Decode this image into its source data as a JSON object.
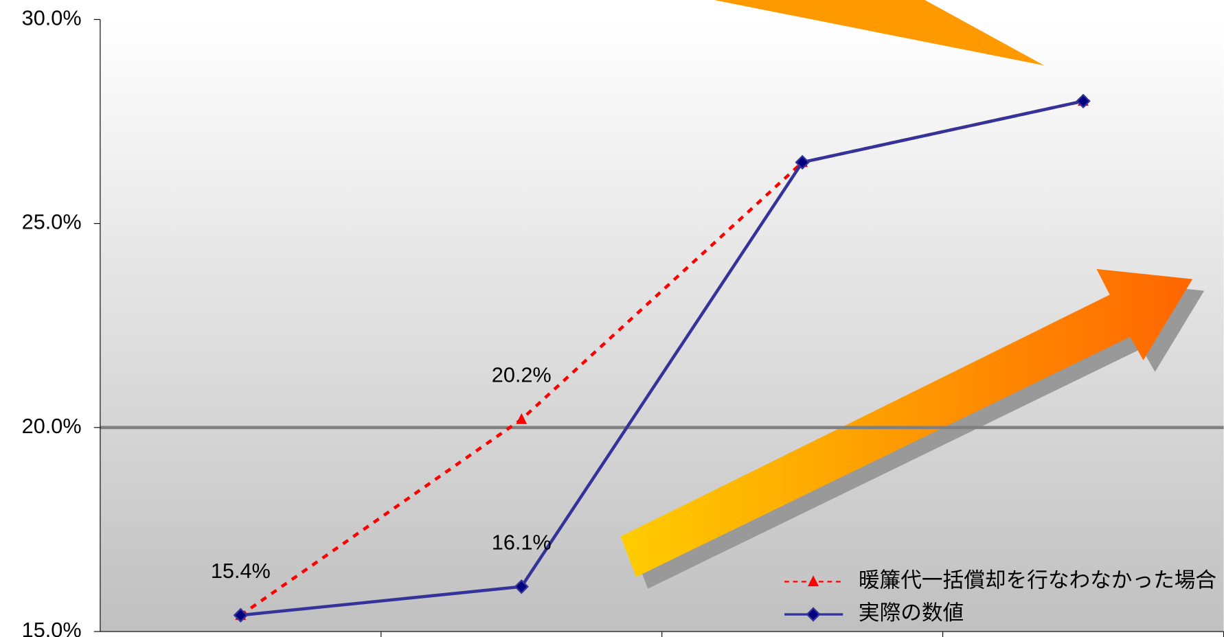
{
  "chart_data": {
    "type": "line",
    "categories": [
      null,
      null,
      null,
      null
    ],
    "series": [
      {
        "name": "暖簾代一括償却を行なわなかった場合",
        "color": "#ff0000",
        "dash": true,
        "marker": "triangle",
        "values": [
          15.4,
          20.2,
          26.5,
          28.0
        ],
        "value_labels": [
          "15.4%",
          "20.2%",
          null,
          null
        ]
      },
      {
        "name": "実際の数値",
        "color": "#333399",
        "dash": false,
        "marker": "diamond",
        "values": [
          15.4,
          16.1,
          26.5,
          28.0
        ],
        "value_labels": [
          null,
          "16.1%",
          null,
          null
        ]
      }
    ],
    "ylim": [
      15,
      30
    ],
    "yticks": [
      {
        "value": 15,
        "label": "15.0%"
      },
      {
        "value": 20,
        "label": "20.0%"
      },
      {
        "value": 25,
        "label": "25.0%"
      },
      {
        "value": 30,
        "label": "30.0%"
      }
    ],
    "reference_line": 20,
    "legend": "bottom-right"
  }
}
